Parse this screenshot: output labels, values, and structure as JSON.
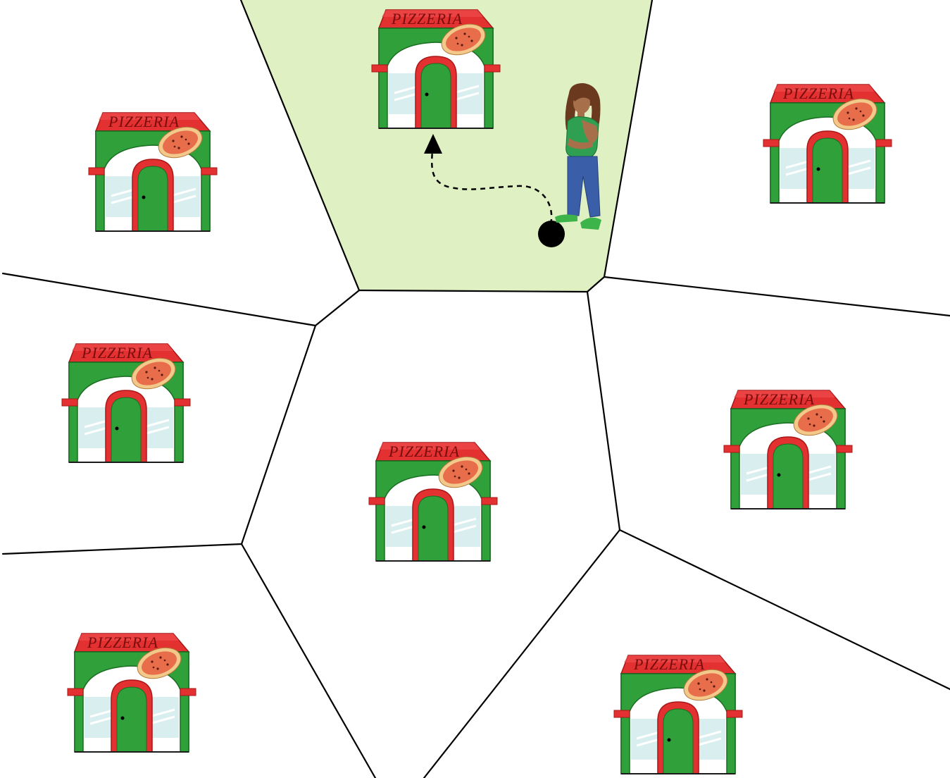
{
  "diagram": {
    "type": "voronoi-nearest-pizzeria",
    "highlighted_cell": "top-center",
    "colors": {
      "highlight": "#dff0c3",
      "cell_edge": "#000000",
      "roof": "#e33030",
      "roof_dark": "#a81818",
      "wall": "#2fa03a",
      "wall_dark": "#1a6d22",
      "awning": "#e33030",
      "window": "#d9eeee",
      "pizza": "#e86d4a",
      "pizza_crust": "#f2c98a",
      "path": "#000000"
    },
    "icons": {
      "shop": "pizzeria-shop-icon",
      "person": "person-thinking-icon",
      "start": "start-dot-icon",
      "arrow": "arrowhead-icon"
    },
    "sign_label": "PIZZERIA",
    "pizzerias": [
      {
        "id": "top-center",
        "label": "PIZZERIA"
      },
      {
        "id": "upper-left",
        "label": "PIZZERIA"
      },
      {
        "id": "upper-right",
        "label": "PIZZERIA"
      },
      {
        "id": "middle-left",
        "label": "PIZZERIA"
      },
      {
        "id": "center",
        "label": "PIZZERIA"
      },
      {
        "id": "middle-right",
        "label": "PIZZERIA"
      },
      {
        "id": "lower-left",
        "label": "PIZZERIA"
      },
      {
        "id": "lower-right",
        "label": "PIZZERIA"
      }
    ]
  }
}
